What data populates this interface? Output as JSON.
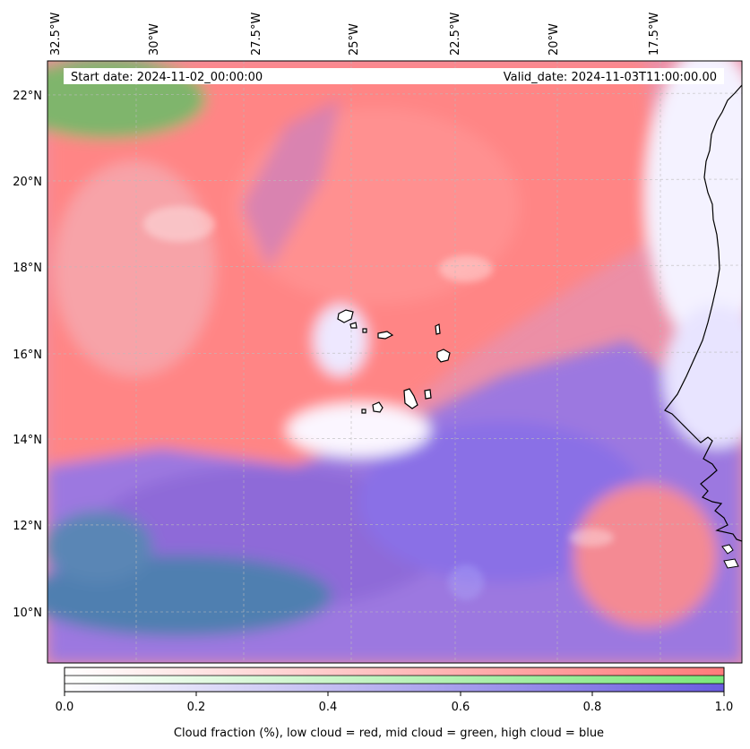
{
  "start_date_label": "Start date: 2024-11-02_00:00:00",
  "valid_date_label": "Valid_date: 2024-11-03T11:00:00.00",
  "lon_ticks": [
    "32.5°W",
    "30°W",
    "27.5°W",
    "25°W",
    "22.5°W",
    "20°W",
    "17.5°W"
  ],
  "lat_ticks": [
    "22°N",
    "20°N",
    "18°N",
    "16°N",
    "14°N",
    "12°N",
    "10°N"
  ],
  "colorbar": {
    "ticks": [
      "0.0",
      "0.2",
      "0.4",
      "0.6",
      "0.8",
      "1.0"
    ],
    "label": "Cloud fraction (%), low cloud = red, mid cloud = green, high cloud = blue",
    "colors": {
      "low": "#ff7b7b",
      "mid": "#7be87b",
      "high": "#6a5ce0"
    }
  }
}
